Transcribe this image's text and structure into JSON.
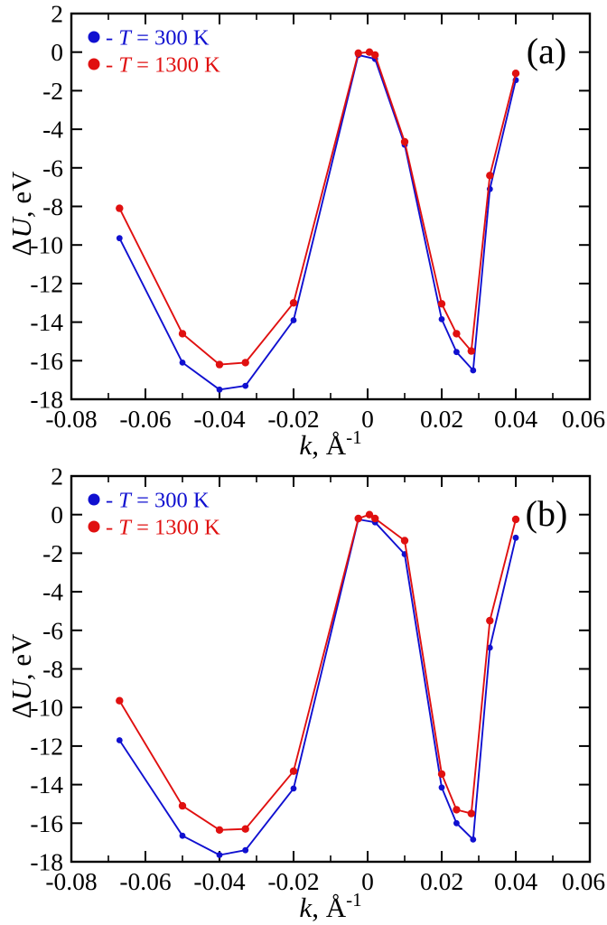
{
  "figure": {
    "background": "#ffffff",
    "axis_color": "#000000",
    "series_colors": {
      "t300": "#1010d0",
      "t1300": "#e01010"
    }
  },
  "chart_data": [
    {
      "panel_label": "(a)",
      "type": "line",
      "title": "",
      "xlabel": "k, Å⁻¹",
      "ylabel": "ΔU, eV",
      "xlabel_parts": {
        "var": "k",
        "rest": ", Å",
        "sup": "-1"
      },
      "ylabel_parts": {
        "prefix": "Δ",
        "var": "U",
        "rest": ", eV"
      },
      "xlim": [
        -0.08,
        0.06
      ],
      "ylim": [
        -18,
        2
      ],
      "grid": false,
      "legend_position": "top-left",
      "xticks": {
        "major": [
          -0.08,
          -0.06,
          -0.04,
          -0.02,
          0,
          0.02,
          0.04,
          0.06
        ],
        "labels": [
          "-0.08",
          "-0.06",
          "-0.04",
          "-0.02",
          "0",
          "0.02",
          "0.04",
          "0.06"
        ],
        "minor": [
          -0.07,
          -0.05,
          -0.03,
          -0.01,
          0.01,
          0.03,
          0.05
        ]
      },
      "yticks": {
        "major": [
          2,
          0,
          -2,
          -4,
          -6,
          -8,
          -10,
          -12,
          -14,
          -16,
          -18
        ],
        "labels": [
          "2",
          "0",
          "-2",
          "-4",
          "-6",
          "-8",
          "-10",
          "-12",
          "-14",
          "-16",
          "-18"
        ]
      },
      "legend": [
        {
          "label": "- T = 300 K",
          "parts": {
            "prefix": "- ",
            "var": "T",
            "rest": " = 300 K"
          },
          "color": "#1010d0"
        },
        {
          "label": "- T = 1300 K",
          "parts": {
            "prefix": "- ",
            "var": "T",
            "rest": " = 1300 K"
          },
          "color": "#e01010"
        }
      ],
      "series": [
        {
          "name": "T = 300 K",
          "color": "#1010d0",
          "marker_radius": 3.4,
          "points": [
            [
              -0.067,
              -9.65
            ],
            [
              -0.05,
              -16.1
            ],
            [
              -0.04,
              -17.5
            ],
            [
              -0.033,
              -17.3
            ],
            [
              -0.02,
              -13.9
            ],
            [
              -0.0025,
              -0.15
            ],
            [
              0.002,
              -0.35
            ],
            [
              0.01,
              -4.8
            ],
            [
              0.02,
              -13.85
            ],
            [
              0.024,
              -15.55
            ],
            [
              0.0285,
              -16.5
            ],
            [
              0.033,
              -7.1
            ],
            [
              0.04,
              -1.45
            ]
          ]
        },
        {
          "name": "T = 1300 K",
          "color": "#e01010",
          "marker_radius": 4.2,
          "points": [
            [
              -0.067,
              -8.1
            ],
            [
              -0.05,
              -14.6
            ],
            [
              -0.04,
              -16.2
            ],
            [
              -0.033,
              -16.1
            ],
            [
              -0.02,
              -13.0
            ],
            [
              -0.0025,
              -0.05
            ],
            [
              0.0005,
              0.0
            ],
            [
              0.002,
              -0.15
            ],
            [
              0.01,
              -4.65
            ],
            [
              0.02,
              -13.05
            ],
            [
              0.024,
              -14.6
            ],
            [
              0.028,
              -15.5
            ],
            [
              0.033,
              -6.4
            ],
            [
              0.04,
              -1.1
            ]
          ]
        }
      ]
    },
    {
      "panel_label": "(b)",
      "type": "line",
      "title": "",
      "xlabel": "k, Å⁻¹",
      "ylabel": "ΔU, eV",
      "xlabel_parts": {
        "var": "k",
        "rest": ", Å",
        "sup": "-1"
      },
      "ylabel_parts": {
        "prefix": "Δ",
        "var": "U",
        "rest": ", eV"
      },
      "xlim": [
        -0.08,
        0.06
      ],
      "ylim": [
        -18,
        2
      ],
      "grid": false,
      "legend_position": "top-left",
      "xticks": {
        "major": [
          -0.08,
          -0.06,
          -0.04,
          -0.02,
          0,
          0.02,
          0.04,
          0.06
        ],
        "labels": [
          "-0.08",
          "-0.06",
          "-0.04",
          "-0.02",
          "0",
          "0.02",
          "0.04",
          "0.06"
        ],
        "minor": [
          -0.07,
          -0.05,
          -0.03,
          -0.01,
          0.01,
          0.03,
          0.05
        ]
      },
      "yticks": {
        "major": [
          2,
          0,
          -2,
          -4,
          -6,
          -8,
          -10,
          -12,
          -14,
          -16,
          -18
        ],
        "labels": [
          "2",
          "0",
          "-2",
          "-4",
          "-6",
          "-8",
          "-10",
          "-12",
          "-14",
          "-16",
          "-18"
        ]
      },
      "legend": [
        {
          "label": "- T = 300 K",
          "parts": {
            "prefix": "- ",
            "var": "T",
            "rest": " = 300 K"
          },
          "color": "#1010d0"
        },
        {
          "label": "- T = 1300 K",
          "parts": {
            "prefix": "- ",
            "var": "T",
            "rest": " = 1300 K"
          },
          "color": "#e01010"
        }
      ],
      "series": [
        {
          "name": "T = 300 K",
          "color": "#1010d0",
          "marker_radius": 3.4,
          "points": [
            [
              -0.067,
              -11.7
            ],
            [
              -0.05,
              -16.65
            ],
            [
              -0.04,
              -17.65
            ],
            [
              -0.033,
              -17.4
            ],
            [
              -0.02,
              -14.2
            ],
            [
              -0.0025,
              -0.25
            ],
            [
              0.002,
              -0.4
            ],
            [
              0.01,
              -2.05
            ],
            [
              0.02,
              -14.15
            ],
            [
              0.024,
              -16.0
            ],
            [
              0.0285,
              -16.85
            ],
            [
              0.033,
              -6.9
            ],
            [
              0.04,
              -1.2
            ]
          ]
        },
        {
          "name": "T = 1300 K",
          "color": "#e01010",
          "marker_radius": 4.2,
          "points": [
            [
              -0.067,
              -9.65
            ],
            [
              -0.05,
              -15.1
            ],
            [
              -0.04,
              -16.35
            ],
            [
              -0.033,
              -16.3
            ],
            [
              -0.02,
              -13.3
            ],
            [
              -0.0025,
              -0.2
            ],
            [
              0.0005,
              0.0
            ],
            [
              0.002,
              -0.2
            ],
            [
              0.01,
              -1.35
            ],
            [
              0.02,
              -13.45
            ],
            [
              0.024,
              -15.3
            ],
            [
              0.028,
              -15.5
            ],
            [
              0.033,
              -5.5
            ],
            [
              0.04,
              -0.25
            ]
          ]
        }
      ]
    }
  ]
}
